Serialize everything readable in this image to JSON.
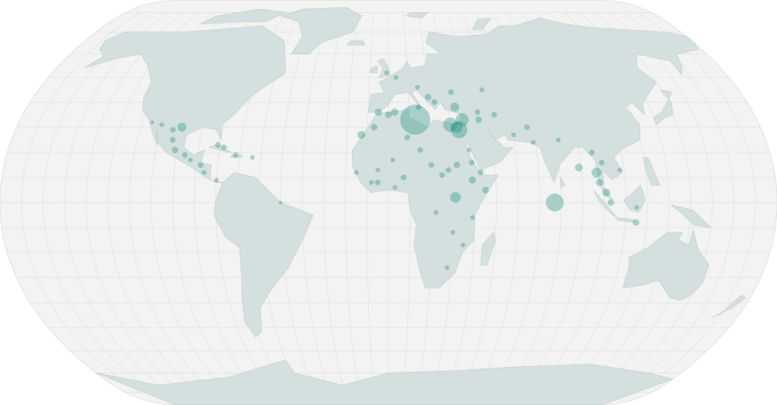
{
  "map": {
    "projection": "natural-earth",
    "graticule_step_degrees": 10,
    "colors": {
      "ocean": "#f3f3f2",
      "land": "#d3e0df",
      "borders": "#b9cbc9",
      "graticule": "#e0e0de",
      "marker": "#1a9080"
    },
    "points": [
      {
        "lat": 33,
        "lon": 13,
        "value": 100
      },
      {
        "lat": 31,
        "lon": 30,
        "value": 22
      },
      {
        "lat": 29,
        "lon": 34,
        "value": 30
      },
      {
        "lat": 30,
        "lon": 33,
        "value": 14
      },
      {
        "lat": 33,
        "lon": 36,
        "value": 18
      },
      {
        "lat": 38,
        "lon": 33,
        "value": 8
      },
      {
        "lat": 0,
        "lon": 77,
        "value": 35
      },
      {
        "lat": 2,
        "lon": 31,
        "value": 12
      },
      {
        "lat": 14,
        "lon": 89,
        "value": 6
      },
      {
        "lat": 12,
        "lon": 97,
        "value": 10
      },
      {
        "lat": 8,
        "lon": 98,
        "value": 5
      },
      {
        "lat": 4,
        "lon": 101,
        "value": 6
      },
      {
        "lat": 0,
        "lon": 103,
        "value": 4
      },
      {
        "lat": 20,
        "lon": 96,
        "value": 3
      },
      {
        "lat": 16,
        "lon": 100,
        "value": 3
      },
      {
        "lat": 13,
        "lon": 108,
        "value": 2
      },
      {
        "lat": -2,
        "lon": 115,
        "value": 2
      },
      {
        "lat": 30,
        "lon": -100,
        "value": 8
      },
      {
        "lat": 29,
        "lon": -104,
        "value": 3
      },
      {
        "lat": 25,
        "lon": -103,
        "value": 3
      },
      {
        "lat": 21,
        "lon": -101,
        "value": 4
      },
      {
        "lat": 19,
        "lon": -96,
        "value": 3
      },
      {
        "lat": 17,
        "lon": -93,
        "value": 2
      },
      {
        "lat": 31,
        "lon": -110,
        "value": 2
      },
      {
        "lat": 32,
        "lon": -115,
        "value": 1
      },
      {
        "lat": 22,
        "lon": -78,
        "value": 3
      },
      {
        "lat": 19,
        "lon": -72,
        "value": 3
      },
      {
        "lat": 15,
        "lon": -88,
        "value": 3
      },
      {
        "lat": 12,
        "lon": -86,
        "value": 2
      },
      {
        "lat": 9,
        "lon": -80,
        "value": 2
      },
      {
        "lat": 36,
        "lon": -5,
        "value": 5
      },
      {
        "lat": 35,
        "lon": 0,
        "value": 4
      },
      {
        "lat": 36,
        "lon": 3,
        "value": 5
      },
      {
        "lat": 38,
        "lon": 15,
        "value": 3
      },
      {
        "lat": 40,
        "lon": 23,
        "value": 3
      },
      {
        "lat": 44,
        "lon": 32,
        "value": 3
      },
      {
        "lat": 46,
        "lon": 15,
        "value": 2
      },
      {
        "lat": 50,
        "lon": 4,
        "value": 2
      },
      {
        "lat": 30,
        "lon": -7,
        "value": 4
      },
      {
        "lat": 27,
        "lon": -13,
        "value": 6
      },
      {
        "lat": 26,
        "lon": 9,
        "value": 3
      },
      {
        "lat": 21,
        "lon": 15,
        "value": 3
      },
      {
        "lat": 17,
        "lon": 2,
        "value": 2
      },
      {
        "lat": 13,
        "lon": -5,
        "value": 2
      },
      {
        "lat": 15,
        "lon": 20,
        "value": 3
      },
      {
        "lat": 15,
        "lon": 32,
        "value": 4
      },
      {
        "lat": 13,
        "lon": 28,
        "value": 3
      },
      {
        "lat": 11,
        "lon": 25,
        "value": 3
      },
      {
        "lat": 16,
        "lon": 39,
        "value": 3
      },
      {
        "lat": 9,
        "lon": 39,
        "value": 5
      },
      {
        "lat": 12,
        "lon": 43,
        "value": 3
      },
      {
        "lat": 5,
        "lon": 45,
        "value": 4
      },
      {
        "lat": 10,
        "lon": 7,
        "value": 3
      },
      {
        "lat": 6,
        "lon": 3,
        "value": 2
      },
      {
        "lat": 8,
        "lon": -8,
        "value": 2
      },
      {
        "lat": 12,
        "lon": -15,
        "value": 2
      },
      {
        "lat": -4,
        "lon": 22,
        "value": 2
      },
      {
        "lat": -12,
        "lon": 30,
        "value": 2
      },
      {
        "lat": -17,
        "lon": 35,
        "value": 2
      },
      {
        "lat": -26,
        "lon": 28,
        "value": 2
      },
      {
        "lat": -6,
        "lon": 39,
        "value": 2
      },
      {
        "lat": 33,
        "lon": 44,
        "value": 4
      },
      {
        "lat": 36,
        "lon": 44,
        "value": 3
      },
      {
        "lat": 35,
        "lon": 52,
        "value": 3
      },
      {
        "lat": 27,
        "lon": 60,
        "value": 2
      },
      {
        "lat": 30,
        "lon": 67,
        "value": 3
      },
      {
        "lat": 24,
        "lon": 69,
        "value": 2
      },
      {
        "lat": 45,
        "lon": 48,
        "value": 2
      },
      {
        "lat": 52,
        "lon": -1,
        "value": 2
      },
      {
        "lat": 21,
        "lon": 38,
        "value": 2
      },
      {
        "lat": 25,
        "lon": 81,
        "value": 2
      },
      {
        "lat": 23,
        "lon": -81,
        "value": 3
      },
      {
        "lat": 42,
        "lon": 20,
        "value": 4
      },
      {
        "lat": 0,
        "lon": -50,
        "value": 1
      },
      {
        "lat": 18,
        "lon": -64,
        "value": 2
      },
      {
        "lat": -8,
        "lon": 115,
        "value": 4
      },
      {
        "lat": 8,
        "lon": -5,
        "value": 3
      }
    ]
  }
}
